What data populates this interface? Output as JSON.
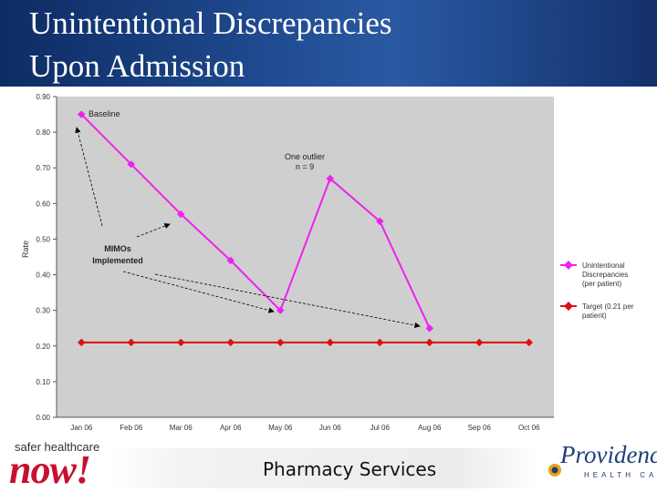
{
  "slide": {
    "title_line1": "Unintentional Discrepancies",
    "title_line2": "Upon Admission",
    "footer_text": "Pharmacy Services",
    "logo_left_top": "safer healthcare",
    "logo_left_main": "now!",
    "logo_right_main": "Providence",
    "logo_right_sub": "HEALTH CARE"
  },
  "chart_data": {
    "type": "line",
    "ylabel": "Rate",
    "categories": [
      "Jan 06",
      "Feb 06",
      "Mar 06",
      "Apr 06",
      "May 06",
      "Jun 06",
      "Jul 06",
      "Aug 06",
      "Sep 06",
      "Oct 06"
    ],
    "ylim": [
      0,
      0.9
    ],
    "yticks": [
      "0.00",
      "0.10",
      "0.20",
      "0.30",
      "0.40",
      "0.50",
      "0.60",
      "0.70",
      "0.80",
      "0.90"
    ],
    "grid": false,
    "legend_position": "right",
    "series": [
      {
        "name": "Unintentional Discrepancies (per patient)",
        "color": "#ee22ee",
        "values": [
          0.85,
          0.71,
          0.57,
          0.44,
          0.3,
          0.67,
          0.55,
          0.25,
          null,
          null
        ]
      },
      {
        "name": "Target (0.21 per patient)",
        "color": "#e01010",
        "values": [
          0.21,
          0.21,
          0.21,
          0.21,
          0.21,
          0.21,
          0.21,
          0.21,
          0.21,
          0.21
        ]
      }
    ],
    "annotations": [
      {
        "text": "Baseline"
      },
      {
        "text": "One outlier"
      },
      {
        "text": "n = 9"
      },
      {
        "text": "MIMOs"
      },
      {
        "text": "Implemented"
      }
    ]
  }
}
